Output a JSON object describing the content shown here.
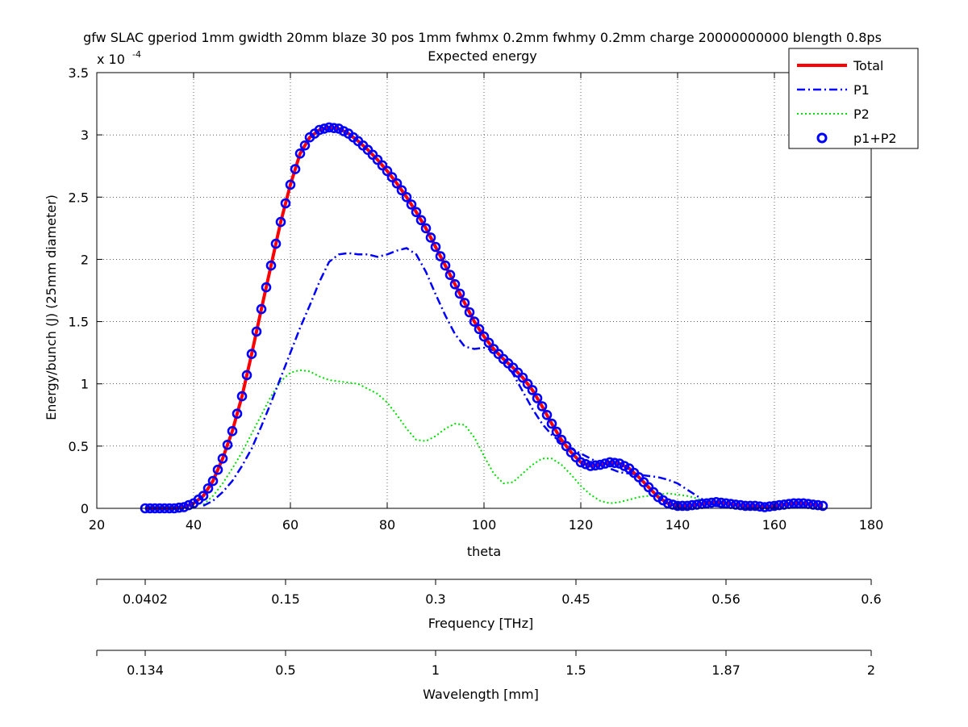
{
  "chart_data": {
    "type": "line",
    "title": "gfw SLAC gperiod 1mm gwidth 20mm blaze 30 pos 1mm fwhmx 0.2mm fwhmy 0.2mm charge 20000000000 blength 0.8ps",
    "subtitle": "Expected energy",
    "xlabel": "theta",
    "ylabel": "Energy/bunch (J) (25mm diameter)",
    "y_exponent_label": "x 10",
    "y_exponent_power": "-4",
    "xlim": [
      20,
      180
    ],
    "ylim": [
      0,
      3.5
    ],
    "grid": true,
    "legend_position": "top-right",
    "x_ticks": [
      "20",
      "40",
      "60",
      "80",
      "100",
      "120",
      "140",
      "160",
      "180"
    ],
    "y_ticks": [
      "0",
      "0.5",
      "1",
      "1.5",
      "2",
      "2.5",
      "3",
      "3.5"
    ],
    "secondary_axes": [
      {
        "label": "Frequency [THz]",
        "ticks": [
          {
            "theta": 20,
            "label": ""
          },
          {
            "theta": 30,
            "label": "0.0402"
          },
          {
            "theta": 59,
            "label": "0.15"
          },
          {
            "theta": 90,
            "label": "0.3"
          },
          {
            "theta": 119,
            "label": "0.45"
          },
          {
            "theta": 150,
            "label": "0.56"
          },
          {
            "theta": 180,
            "label": "0.6"
          }
        ]
      },
      {
        "label": "Wavelength [mm]",
        "ticks": [
          {
            "theta": 20,
            "label": ""
          },
          {
            "theta": 30,
            "label": "0.134"
          },
          {
            "theta": 59,
            "label": "0.5"
          },
          {
            "theta": 90,
            "label": "1"
          },
          {
            "theta": 119,
            "label": "1.5"
          },
          {
            "theta": 150,
            "label": "1.87"
          },
          {
            "theta": 180,
            "label": "2"
          }
        ]
      }
    ],
    "series": [
      {
        "name": "Total",
        "style": "solid",
        "color": "#ff0000",
        "x": [
          30,
          32,
          34,
          36,
          38,
          40,
          42,
          44,
          46,
          48,
          50,
          52,
          54,
          56,
          58,
          60,
          62,
          64,
          66,
          68,
          70,
          72,
          74,
          76,
          78,
          80,
          82,
          84,
          86,
          88,
          90,
          92,
          94,
          96,
          98,
          100,
          102,
          104,
          106,
          108,
          110,
          112,
          114,
          116,
          118,
          120,
          122,
          124,
          126,
          128,
          130,
          132,
          134,
          136,
          138,
          140,
          142,
          144,
          146,
          148,
          150,
          152,
          154,
          156,
          158,
          160,
          162,
          164,
          166,
          168,
          170
        ],
        "y": [
          0,
          0,
          0,
          0,
          0.01,
          0.04,
          0.1,
          0.22,
          0.4,
          0.62,
          0.9,
          1.24,
          1.6,
          1.95,
          2.3,
          2.6,
          2.85,
          2.98,
          3.04,
          3.06,
          3.05,
          3.01,
          2.95,
          2.88,
          2.8,
          2.71,
          2.61,
          2.5,
          2.38,
          2.25,
          2.1,
          1.95,
          1.8,
          1.65,
          1.5,
          1.38,
          1.28,
          1.2,
          1.13,
          1.05,
          0.95,
          0.82,
          0.68,
          0.55,
          0.45,
          0.37,
          0.34,
          0.35,
          0.37,
          0.36,
          0.32,
          0.25,
          0.17,
          0.09,
          0.04,
          0.02,
          0.02,
          0.03,
          0.04,
          0.05,
          0.04,
          0.03,
          0.02,
          0.02,
          0.01,
          0.02,
          0.03,
          0.04,
          0.04,
          0.03,
          0.02
        ]
      },
      {
        "name": "P1",
        "style": "dashdot",
        "color": "#0000ff",
        "x": [
          42,
          44,
          46,
          48,
          50,
          52,
          54,
          56,
          58,
          60,
          62,
          64,
          66,
          68,
          70,
          72,
          74,
          76,
          78,
          80,
          82,
          84,
          86,
          88,
          90,
          92,
          94,
          96,
          98,
          100,
          102,
          104,
          106,
          108,
          110,
          112,
          114,
          116,
          118,
          120,
          122,
          124,
          126,
          128,
          130,
          132,
          134,
          136,
          138,
          140,
          142,
          144,
          146,
          148,
          150
        ],
        "y": [
          0.02,
          0.06,
          0.13,
          0.22,
          0.34,
          0.48,
          0.66,
          0.85,
          1.05,
          1.25,
          1.45,
          1.63,
          1.82,
          1.98,
          2.04,
          2.05,
          2.04,
          2.04,
          2.02,
          2.04,
          2.07,
          2.09,
          2.04,
          1.9,
          1.72,
          1.55,
          1.4,
          1.3,
          1.28,
          1.29,
          1.27,
          1.2,
          1.08,
          0.94,
          0.8,
          0.68,
          0.59,
          0.53,
          0.48,
          0.44,
          0.4,
          0.36,
          0.32,
          0.29,
          0.28,
          0.27,
          0.26,
          0.25,
          0.23,
          0.2,
          0.15,
          0.1,
          0.05,
          0.02,
          0.0
        ]
      },
      {
        "name": "P2",
        "style": "dotted",
        "color": "#00ff00",
        "x": [
          42,
          44,
          46,
          48,
          50,
          52,
          54,
          56,
          58,
          60,
          62,
          64,
          66,
          68,
          70,
          72,
          74,
          76,
          78,
          80,
          82,
          84,
          86,
          88,
          90,
          92,
          94,
          96,
          98,
          100,
          102,
          104,
          106,
          108,
          110,
          112,
          114,
          116,
          118,
          120,
          122,
          124,
          126,
          128,
          130,
          132,
          134,
          136,
          138,
          140,
          142,
          144,
          146,
          148,
          150
        ],
        "y": [
          0.03,
          0.1,
          0.2,
          0.32,
          0.45,
          0.6,
          0.75,
          0.9,
          1.02,
          1.09,
          1.11,
          1.1,
          1.06,
          1.03,
          1.02,
          1.01,
          1.0,
          0.96,
          0.92,
          0.85,
          0.75,
          0.64,
          0.55,
          0.54,
          0.58,
          0.64,
          0.68,
          0.67,
          0.57,
          0.42,
          0.28,
          0.2,
          0.21,
          0.28,
          0.35,
          0.4,
          0.4,
          0.35,
          0.27,
          0.18,
          0.11,
          0.06,
          0.04,
          0.05,
          0.07,
          0.09,
          0.1,
          0.11,
          0.12,
          0.11,
          0.1,
          0.08,
          0.05,
          0.03,
          0.01
        ]
      },
      {
        "name": "p1+P2",
        "style": "markers",
        "color": "#0000ff",
        "marker": "circle"
      }
    ]
  }
}
